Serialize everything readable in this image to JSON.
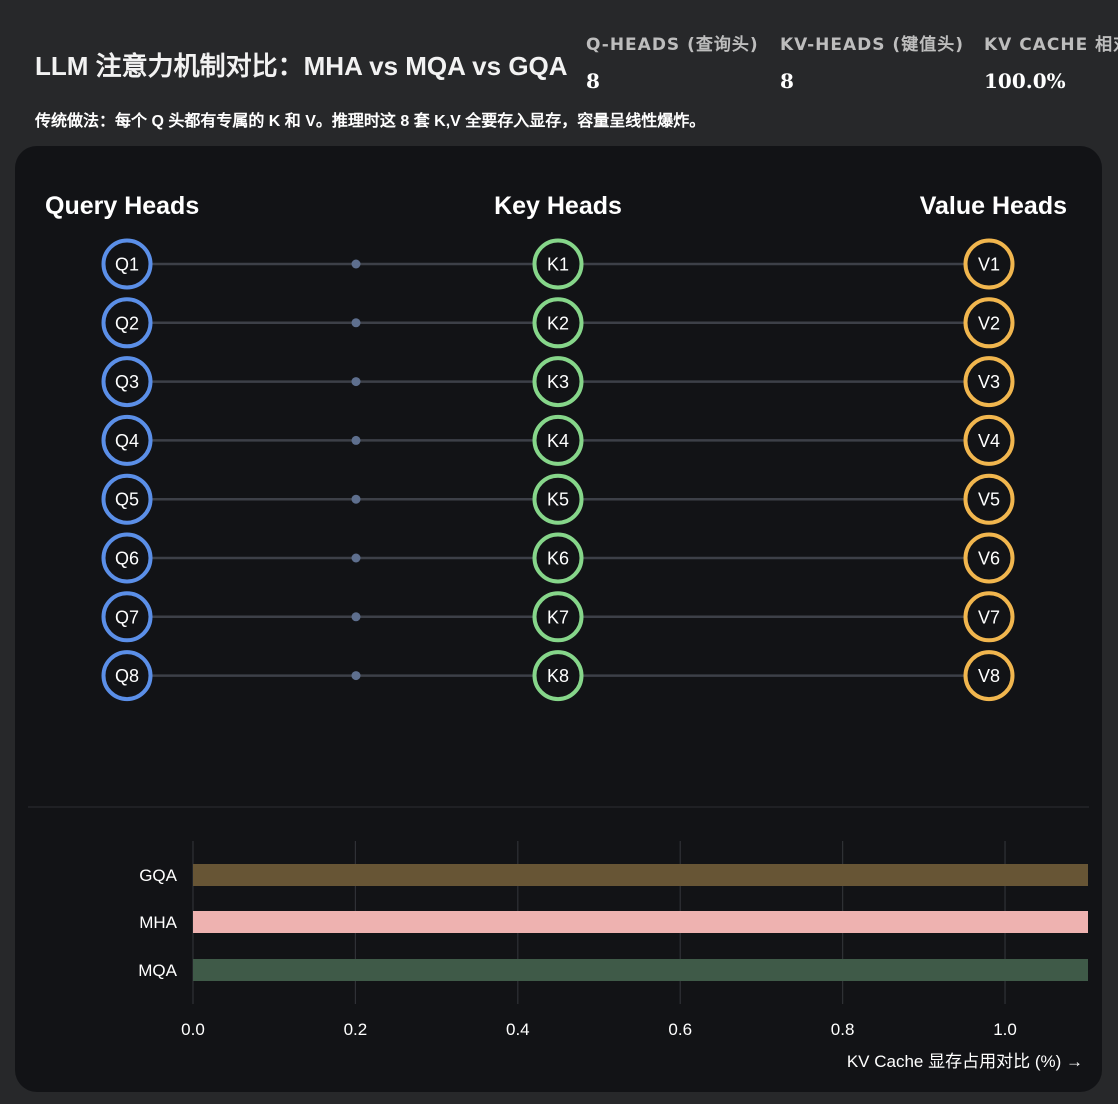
{
  "header": {
    "title": "LLM 注意力机制对比：MHA vs MQA vs GQA",
    "subtitle": "传统做法：每个 Q 头都有专属的 K 和 V。推理时这 8 套 K,V 全要存入显存，容量呈线性爆炸。",
    "stats": [
      {
        "label": "Q-HEADS (查询头)",
        "value": "8"
      },
      {
        "label": "KV-HEADS (键值头)",
        "value": "8"
      },
      {
        "label": "KV CACHE 相对",
        "value": "100.0%"
      }
    ]
  },
  "diagram": {
    "columns": {
      "query": "Query Heads",
      "key": "Key Heads",
      "value": "Value Heads"
    },
    "query_heads": [
      "Q1",
      "Q2",
      "Q3",
      "Q4",
      "Q5",
      "Q6",
      "Q7",
      "Q8"
    ],
    "key_heads": [
      "K1",
      "K2",
      "K3",
      "K4",
      "K5",
      "K6",
      "K7",
      "K8"
    ],
    "value_heads": [
      "V1",
      "V2",
      "V3",
      "V4",
      "V5",
      "V6",
      "V7",
      "V8"
    ],
    "colors": {
      "query": "#5b8fe8",
      "key": "#86d68a",
      "value": "#f1b64e",
      "link": "#3d4048",
      "dot": "#5e6f8e"
    }
  },
  "chart_data": {
    "type": "bar",
    "orientation": "horizontal",
    "categories": [
      "GQA",
      "MHA",
      "MQA"
    ],
    "values": [
      1.0,
      1.0,
      1.0
    ],
    "colors": [
      "#675535",
      "#eeb2b0",
      "#3f5a48"
    ],
    "xlim": [
      0,
      1.08
    ],
    "xticks": [
      "0.0",
      "0.2",
      "0.4",
      "0.6",
      "0.8",
      "1.0"
    ],
    "xlabel": "KV Cache 显存占用对比 (%) →",
    "grid": true
  }
}
